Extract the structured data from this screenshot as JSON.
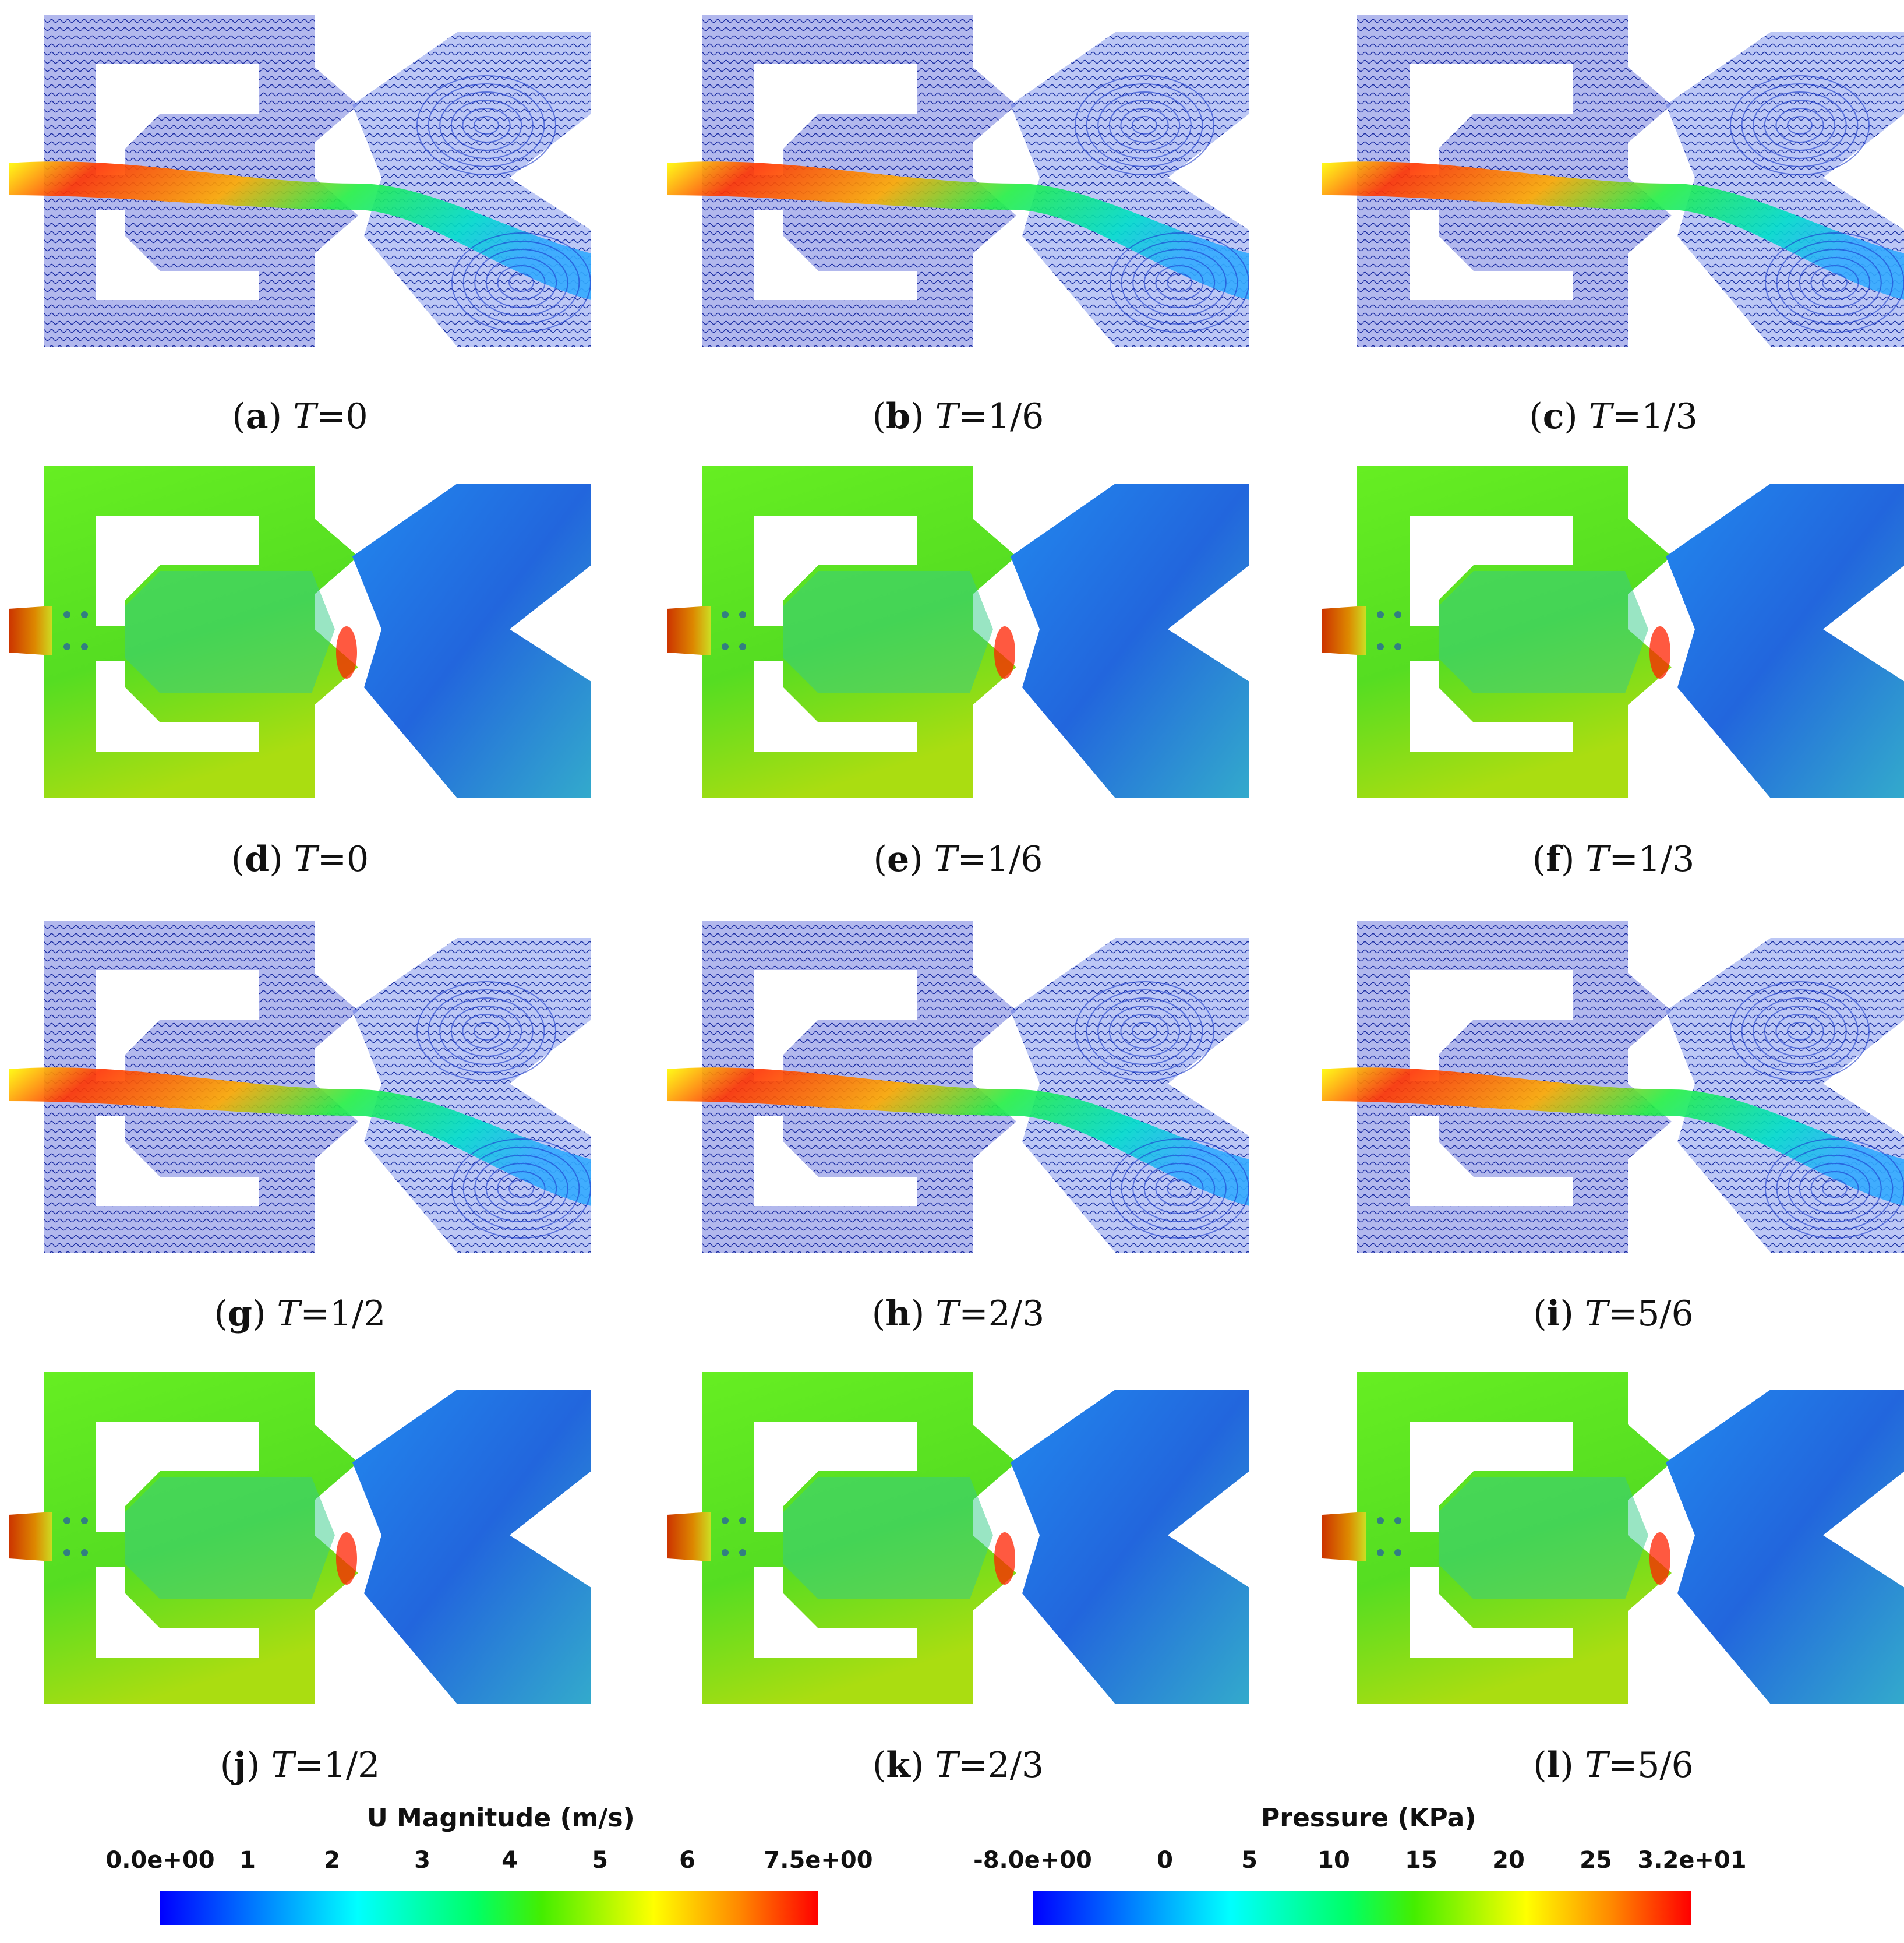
{
  "panels": [
    {
      "label": "a",
      "time": "=0",
      "kind": "velocity"
    },
    {
      "label": "b",
      "time": "=1/6",
      "kind": "velocity"
    },
    {
      "label": "c",
      "time": "=1/3",
      "kind": "velocity"
    },
    {
      "label": "d",
      "time": "=0",
      "kind": "pressure"
    },
    {
      "label": "e",
      "time": "=1/6",
      "kind": "pressure"
    },
    {
      "label": "f",
      "time": "=1/3",
      "kind": "pressure"
    },
    {
      "label": "g",
      "time": "=1/2",
      "kind": "velocity"
    },
    {
      "label": "h",
      "time": "=2/3",
      "kind": "velocity"
    },
    {
      "label": "i",
      "time": "=5/6",
      "kind": "velocity"
    },
    {
      "label": "j",
      "time": "=1/2",
      "kind": "pressure"
    },
    {
      "label": "k",
      "time": "=2/3",
      "kind": "pressure"
    },
    {
      "label": "l",
      "time": "=5/6",
      "kind": "pressure"
    }
  ],
  "time_symbol": "T",
  "velocity_colorbar": {
    "title": "U Magnitude (m/s)",
    "ticks": [
      "0.0e+00",
      "1",
      "2",
      "3",
      "4",
      "5",
      "6",
      "7.5e+00"
    ],
    "range": [
      0,
      7.5
    ]
  },
  "pressure_colorbar": {
    "title": "Pressure (KPa)",
    "ticks": [
      "-8.0e+00",
      "0",
      "5",
      "10",
      "15",
      "20",
      "25",
      "3.2e+01"
    ],
    "range": [
      -8,
      32
    ]
  },
  "colors": {
    "low": "#0000ff",
    "mid": "#00ff66",
    "high": "#ff0000",
    "streamline": "#1a2a8c",
    "pressure_base": "#55dd22"
  }
}
